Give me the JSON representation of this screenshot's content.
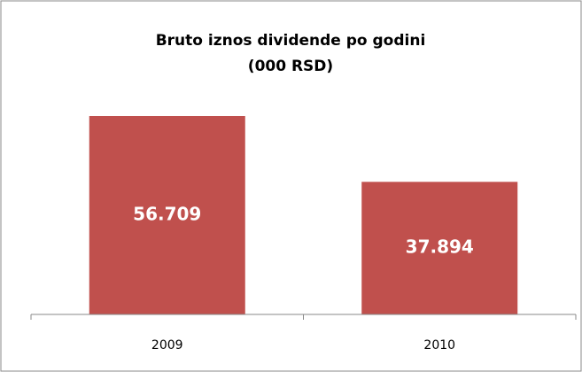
{
  "chart_data": {
    "type": "bar",
    "title": "Bruto iznos dividende po godini",
    "subtitle": "(000 RSD)",
    "categories": [
      "2009",
      "2010"
    ],
    "values": [
      56709,
      37894
    ],
    "value_labels": [
      "56.709",
      "37.894"
    ],
    "color": "#c0504d"
  }
}
